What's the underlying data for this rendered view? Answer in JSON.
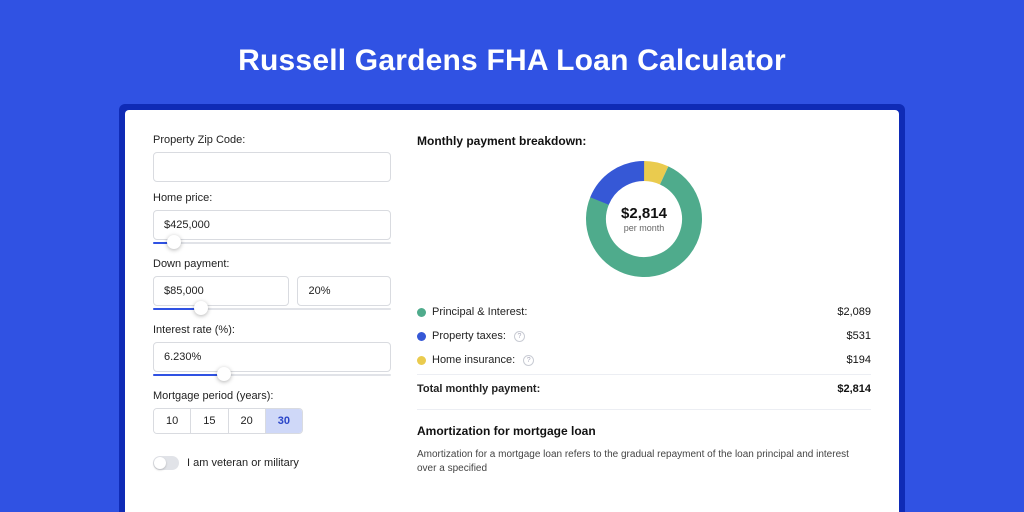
{
  "page": {
    "title": "Russell Gardens FHA Loan Calculator",
    "bg_color": "#3052e3",
    "shell_color": "#0f2bb6",
    "card_bg": "#ffffff"
  },
  "form": {
    "zip": {
      "label": "Property Zip Code:",
      "value": ""
    },
    "home_price": {
      "label": "Home price:",
      "value": "$425,000",
      "slider_pct": 0.09
    },
    "down_payment": {
      "label": "Down payment:",
      "amount": "$85,000",
      "percent": "20%",
      "slider_pct": 0.2
    },
    "interest_rate": {
      "label": "Interest rate (%):",
      "value": "6.230%",
      "slider_pct": 0.3
    },
    "mortgage_period": {
      "label": "Mortgage period (years):",
      "options": [
        "10",
        "15",
        "20",
        "30"
      ],
      "selected": "30"
    },
    "veteran": {
      "label": "I am veteran or military",
      "on": false
    }
  },
  "breakdown": {
    "title": "Monthly payment breakdown:",
    "donut": {
      "type": "donut",
      "amount": "$2,814",
      "sub": "per month",
      "segments": [
        {
          "name": "Principal & Interest",
          "value": 2089,
          "color": "#4fab8c",
          "pct": 0.742
        },
        {
          "name": "Property taxes",
          "value": 531,
          "color": "#3658d6",
          "pct": 0.189
        },
        {
          "name": "Home insurance",
          "value": 194,
          "color": "#eacb4e",
          "pct": 0.069
        }
      ],
      "bg": "#ffffff",
      "stroke_width": 20
    },
    "items": [
      {
        "label": "Principal & Interest:",
        "value": "$2,089",
        "color": "#4fab8c",
        "info": false
      },
      {
        "label": "Property taxes:",
        "value": "$531",
        "color": "#3658d6",
        "info": true
      },
      {
        "label": "Home insurance:",
        "value": "$194",
        "color": "#eacb4e",
        "info": true
      }
    ],
    "total": {
      "label": "Total monthly payment:",
      "value": "$2,814"
    }
  },
  "amortization": {
    "title": "Amortization for mortgage loan",
    "desc": "Amortization for a mortgage loan refers to the gradual repayment of the loan principal and interest over a specified"
  }
}
